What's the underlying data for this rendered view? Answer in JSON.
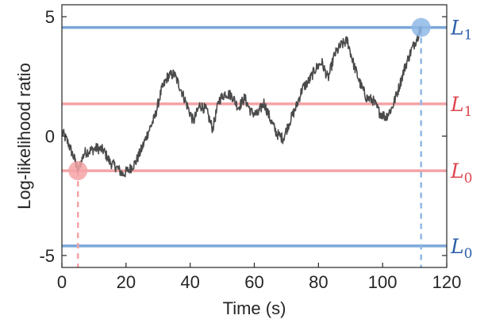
{
  "chart_data": {
    "type": "line",
    "title": "",
    "xlabel": "Time (s)",
    "ylabel": "Log-likelihood ratio",
    "xlim": [
      0,
      120
    ],
    "ylim": [
      -5.5,
      5.5
    ],
    "xticks": [
      0,
      20,
      40,
      60,
      80,
      100,
      120
    ],
    "yticks": [
      -5,
      0,
      5
    ],
    "xtick_labels": [
      "0",
      "20",
      "40",
      "60",
      "80",
      "100",
      "120"
    ],
    "ytick_labels": [
      "-5",
      "0",
      "5"
    ],
    "grid": false,
    "series": [
      {
        "color": "#4a4a4a",
        "x": [
          0,
          2,
          4,
          5,
          7,
          9,
          11,
          13,
          15,
          17,
          19,
          21,
          23,
          25,
          27,
          29,
          31,
          33,
          35,
          37,
          39,
          41,
          43,
          45,
          47,
          49,
          51,
          53,
          55,
          57,
          59,
          61,
          63,
          65,
          67,
          69,
          71,
          73,
          75,
          77,
          79,
          81,
          83,
          85,
          87,
          89,
          91,
          93,
          95,
          97,
          99,
          101,
          103,
          105,
          107,
          109,
          111,
          112
        ],
        "y": [
          0.2,
          -0.3,
          -1.0,
          -1.45,
          -0.7,
          -0.6,
          -0.5,
          -0.6,
          -1.1,
          -1.3,
          -1.6,
          -1.4,
          -1.1,
          -0.5,
          0.2,
          0.8,
          1.9,
          2.5,
          2.6,
          2.0,
          1.3,
          0.6,
          1.3,
          1.1,
          0.3,
          1.5,
          1.8,
          1.7,
          1.2,
          1.6,
          1.0,
          0.9,
          1.4,
          0.7,
          0.1,
          -0.1,
          0.6,
          1.2,
          2.0,
          2.3,
          2.8,
          3.1,
          2.4,
          3.4,
          3.8,
          4.0,
          3.0,
          2.2,
          1.6,
          1.5,
          1.0,
          0.8,
          1.2,
          2.0,
          2.9,
          3.6,
          4.2,
          4.55
        ]
      }
    ],
    "thresholds": [
      {
        "y": 4.55,
        "color": "#7ba7d8",
        "label": "L",
        "sub": "1",
        "label_color": "#2c5ea8"
      },
      {
        "y": 1.35,
        "color": "#f4a3a6",
        "label": "L",
        "sub": "1",
        "label_color": "#e0454f"
      },
      {
        "y": -1.45,
        "color": "#f4a3a6",
        "label": "L",
        "sub": "0",
        "label_color": "#e0454f"
      },
      {
        "y": -4.6,
        "color": "#7ba7d8",
        "label": "L",
        "sub": "0",
        "label_color": "#2c5ea8"
      }
    ],
    "markers": [
      {
        "x": 5,
        "y": -1.45,
        "color": "#f4a3a6"
      },
      {
        "x": 112,
        "y": 4.55,
        "color": "#8fb8e6"
      }
    ]
  }
}
